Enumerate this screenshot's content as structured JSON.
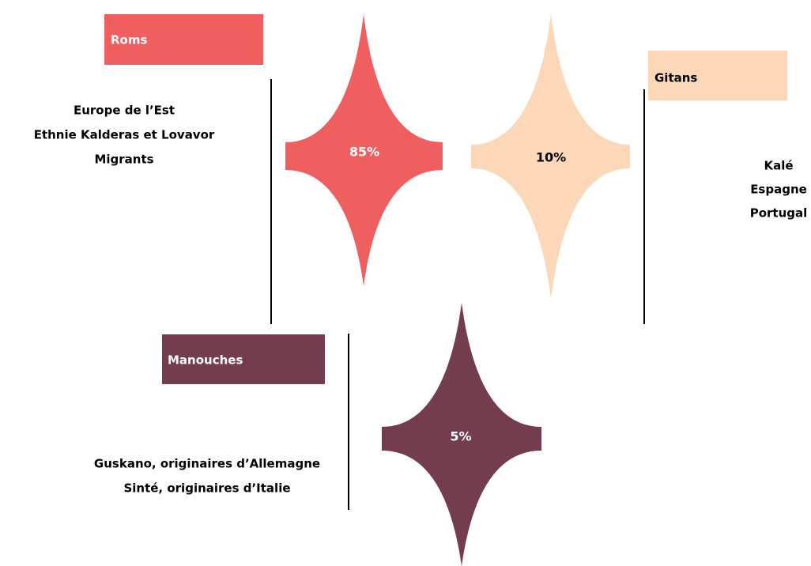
{
  "groups": [
    {
      "name": "Roms",
      "share": "85%",
      "description": [
        "Europe de l’Est",
        "Ethnie Kalderas et Lovavor",
        "Migrants"
      ]
    },
    {
      "name": "Gitans",
      "share": "10%",
      "description": [
        "Kalé",
        "Espagne",
        "Portugal"
      ]
    },
    {
      "name": "Manouches",
      "share": "5%",
      "description": [
        "Guskano, originaires d’Allemagne",
        "Sinté, originaires d’Italie"
      ]
    }
  ]
}
